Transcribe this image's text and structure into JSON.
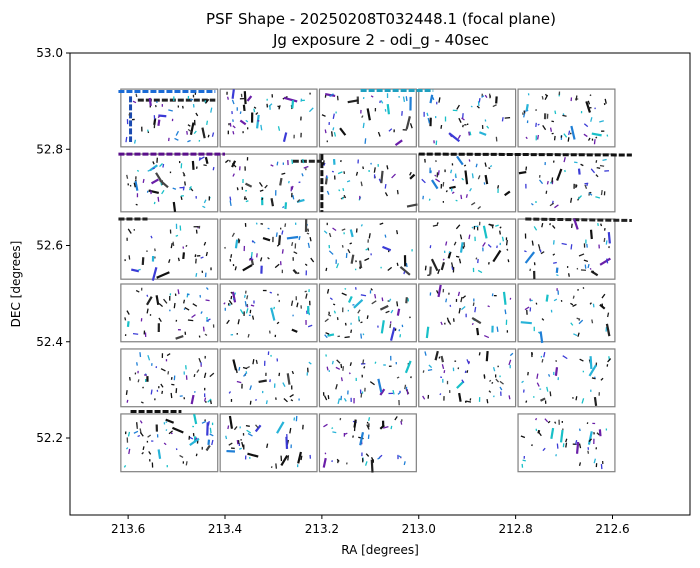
{
  "chart_data": {
    "type": "scatter",
    "title_lines": [
      "PSF Shape - 20250208T032448.1 (focal plane)",
      "Jg exposure 2 - odi_g - 40sec"
    ],
    "xlabel": "RA [degrees]",
    "ylabel": "DEC [degrees]",
    "xlim": [
      213.72,
      212.44
    ],
    "ylim": [
      52.04,
      53.0
    ],
    "x_ticks": [
      213.6,
      213.4,
      213.2,
      213.0,
      212.8,
      212.6
    ],
    "y_ticks": [
      52.2,
      52.4,
      52.6,
      52.8,
      53.0
    ],
    "x_tick_labels": [
      "213.6",
      "213.4",
      "213.2",
      "213.0",
      "212.8",
      "212.6"
    ],
    "y_tick_labels": [
      "52.2",
      "52.4",
      "52.6",
      "52.8",
      "53.0"
    ],
    "grid": false,
    "ccd_columns_ra": [
      [
        213.615,
        213.415
      ],
      [
        213.41,
        213.21
      ],
      [
        213.205,
        213.005
      ],
      [
        213.0,
        212.8
      ],
      [
        212.795,
        212.595
      ]
    ],
    "ccd_rows_dec": [
      [
        52.925,
        52.805
      ],
      [
        52.79,
        52.67
      ],
      [
        52.655,
        52.53
      ],
      [
        52.52,
        52.4
      ],
      [
        52.385,
        52.265
      ],
      [
        52.25,
        52.13
      ]
    ],
    "missing_ccds": [
      [
        5,
        3
      ]
    ],
    "stripe_features": [
      {
        "ra0": 213.62,
        "dec0": 52.92,
        "ra1": 213.42,
        "dec1": 52.92,
        "color": "#1a6bd6"
      },
      {
        "ra0": 213.58,
        "dec0": 52.902,
        "ra1": 213.42,
        "dec1": 52.902,
        "color": "#222222"
      },
      {
        "ra0": 213.595,
        "dec0": 52.91,
        "ra1": 213.595,
        "dec1": 52.815,
        "color": "#1a4ab0"
      },
      {
        "ra0": 213.62,
        "dec0": 52.79,
        "ra1": 213.4,
        "dec1": 52.79,
        "color": "#5a0f8a"
      },
      {
        "ra0": 213.2,
        "dec0": 52.79,
        "ra1": 213.2,
        "dec1": 52.67,
        "color": "#111111"
      },
      {
        "ra0": 213.26,
        "dec0": 52.775,
        "ra1": 213.2,
        "dec1": 52.775,
        "color": "#222222"
      },
      {
        "ra0": 213.12,
        "dec0": 52.922,
        "ra1": 212.97,
        "dec1": 52.922,
        "color": "#1fa0c0"
      },
      {
        "ra0": 213.0,
        "dec0": 52.79,
        "ra1": 212.56,
        "dec1": 52.788,
        "color": "#111111"
      },
      {
        "ra0": 213.62,
        "dec0": 52.655,
        "ra1": 213.56,
        "dec1": 52.655,
        "color": "#222222"
      },
      {
        "ra0": 212.78,
        "dec0": 52.655,
        "ra1": 212.56,
        "dec1": 52.652,
        "color": "#222222"
      },
      {
        "ra0": 213.595,
        "dec0": 52.255,
        "ra1": 213.49,
        "dec1": 52.255,
        "color": "#111111"
      }
    ]
  }
}
